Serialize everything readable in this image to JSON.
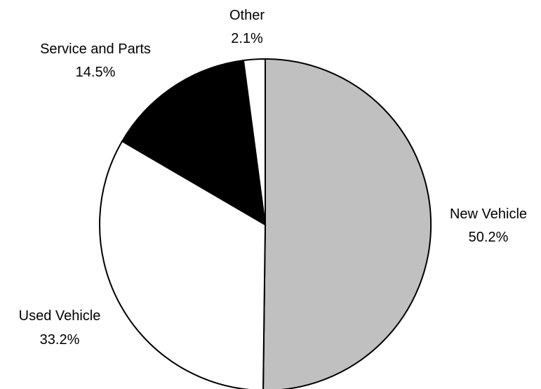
{
  "chart_data": {
    "type": "pie",
    "title": "",
    "start": "12 o'clock",
    "direction": "clockwise",
    "slices": [
      {
        "label": "New Vehicle",
        "value": 50.2,
        "value_label": "50.2%",
        "color": "#c0c0c0"
      },
      {
        "label": "Used Vehicle",
        "value": 33.2,
        "value_label": "33.2%",
        "color": "#ffffff"
      },
      {
        "label": "Service and Parts",
        "value": 14.5,
        "value_label": "14.5%",
        "color": "#000000"
      },
      {
        "label": "Other",
        "value": 2.1,
        "value_label": "2.1%",
        "color": "#ffffff"
      }
    ]
  }
}
